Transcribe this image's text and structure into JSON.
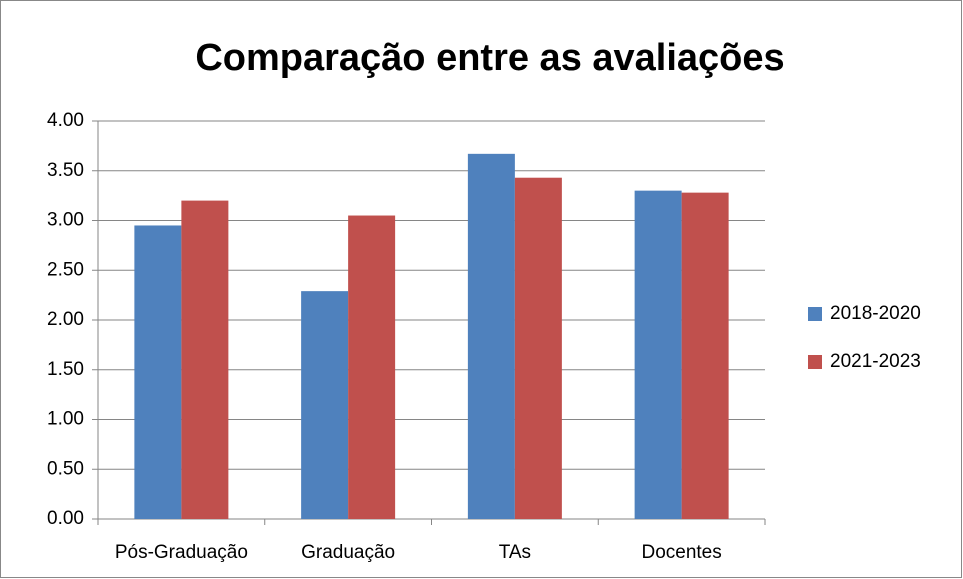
{
  "chart_data": {
    "type": "bar",
    "title": "Comparação entre as avaliações",
    "categories": [
      "Pós-Graduação",
      "Graduação",
      "TAs",
      "Docentes"
    ],
    "series": [
      {
        "name": "2018-2020",
        "color": "#4f81bd",
        "values": [
          2.95,
          2.29,
          3.67,
          3.3
        ]
      },
      {
        "name": "2021-2023",
        "color": "#c0504d",
        "values": [
          3.2,
          3.05,
          3.43,
          3.28
        ]
      }
    ],
    "ylim": [
      0,
      4
    ],
    "yticks": [
      {
        "value": 0,
        "label": "0.00"
      },
      {
        "value": 0.5,
        "label": "0.50"
      },
      {
        "value": 1,
        "label": "1.00"
      },
      {
        "value": 1.5,
        "label": "1.50"
      },
      {
        "value": 2,
        "label": "2.00"
      },
      {
        "value": 2.5,
        "label": "2.50"
      },
      {
        "value": 3,
        "label": "3.00"
      },
      {
        "value": 3.5,
        "label": "3.50"
      },
      {
        "value": 4,
        "label": "4.00"
      }
    ],
    "grid": true,
    "legend": "right"
  }
}
